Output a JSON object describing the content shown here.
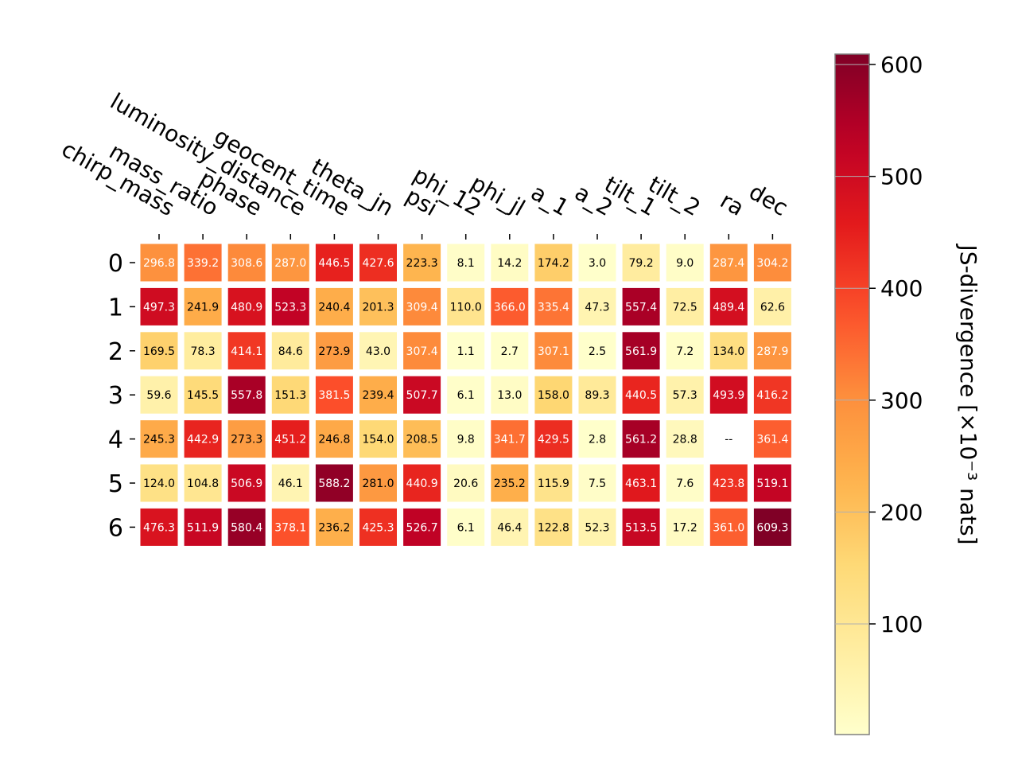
{
  "chart_data": {
    "type": "heatmap",
    "columns": [
      "chirp_mass",
      "mass_ratio",
      "phase",
      "luminosity_distance",
      "geocent_time",
      "theta_jn",
      "psi",
      "phi_12",
      "phi_jl",
      "a_1",
      "a_2",
      "tilt_1",
      "tilt_2",
      "ra",
      "dec"
    ],
    "rows": [
      "0",
      "1",
      "2",
      "3",
      "4",
      "5",
      "6"
    ],
    "values": [
      [
        296.8,
        339.2,
        308.6,
        287.0,
        446.5,
        427.6,
        223.3,
        8.1,
        14.2,
        174.2,
        3.0,
        79.2,
        9.0,
        287.4,
        304.2
      ],
      [
        497.3,
        241.9,
        480.9,
        523.3,
        240.4,
        201.3,
        309.4,
        110.0,
        366.0,
        335.4,
        47.3,
        557.4,
        72.5,
        489.4,
        62.6
      ],
      [
        169.5,
        78.3,
        414.1,
        84.6,
        273.9,
        43.0,
        307.4,
        1.1,
        2.7,
        307.1,
        2.5,
        561.9,
        7.2,
        134.0,
        287.9
      ],
      [
        59.6,
        145.5,
        557.8,
        151.3,
        381.5,
        239.4,
        507.7,
        6.1,
        13.0,
        158.0,
        89.3,
        440.5,
        57.3,
        493.9,
        416.2
      ],
      [
        245.3,
        442.9,
        273.3,
        451.2,
        246.8,
        154.0,
        208.5,
        9.8,
        341.7,
        429.5,
        2.8,
        561.2,
        28.8,
        null,
        361.4
      ],
      [
        124.0,
        104.8,
        506.9,
        46.1,
        588.2,
        281.0,
        440.9,
        20.6,
        235.2,
        115.9,
        7.5,
        463.1,
        7.6,
        423.8,
        519.1
      ],
      [
        476.3,
        511.9,
        580.4,
        378.1,
        236.2,
        425.3,
        526.7,
        6.1,
        46.4,
        122.8,
        52.3,
        513.5,
        17.2,
        361.0,
        609.3
      ]
    ],
    "labels": [
      [
        "296.8",
        "339.2",
        "308.6",
        "287.0",
        "446.5",
        "427.6",
        "223.3",
        "8.1",
        "14.2",
        "174.2",
        "3.0",
        "79.2",
        "9.0",
        "287.4",
        "304.2"
      ],
      [
        "497.3",
        "241.9",
        "480.9",
        "523.3",
        "240.4",
        "201.3",
        "309.4",
        "110.0",
        "366.0",
        "335.4",
        "47.3",
        "557.4",
        "72.5",
        "489.4",
        "62.6"
      ],
      [
        "169.5",
        "78.3",
        "414.1",
        "84.6",
        "273.9",
        "43.0",
        "307.4",
        "1.1",
        "2.7",
        "307.1",
        "2.5",
        "561.9",
        "7.2",
        "134.0",
        "287.9"
      ],
      [
        "59.6",
        "145.5",
        "557.8",
        "151.3",
        "381.5",
        "239.4",
        "507.7",
        "6.1",
        "13.0",
        "158.0",
        "89.3",
        "440.5",
        "57.3",
        "493.9",
        "416.2"
      ],
      [
        "245.3",
        "442.9",
        "273.3",
        "451.2",
        "246.8",
        "154.0",
        "208.5",
        "9.8",
        "341.7",
        "429.5",
        "2.8",
        "561.2",
        "28.8",
        "--",
        "361.4"
      ],
      [
        "124.0",
        "104.8",
        "506.9",
        "46.1",
        "588.2",
        "281.0",
        "440.9",
        "20.6",
        "235.2",
        "115.9",
        "7.5",
        "463.1",
        "7.6",
        "423.8",
        "519.1"
      ],
      [
        "476.3",
        "511.9",
        "580.4",
        "378.1",
        "236.2",
        "425.3",
        "526.7",
        "6.1",
        "46.4",
        "122.8",
        "52.3",
        "513.5",
        "17.2",
        "361.0",
        "609.3"
      ]
    ],
    "colorbar": {
      "label": "JS-divergence [×10⁻³ nats]",
      "min": 1.1,
      "max": 609.3,
      "ticks": [
        100,
        200,
        300,
        400,
        500,
        600
      ],
      "tick_labels": [
        "100",
        "200",
        "300",
        "400",
        "500",
        "600"
      ],
      "colormap": "YlOrRd"
    },
    "grid": false
  }
}
